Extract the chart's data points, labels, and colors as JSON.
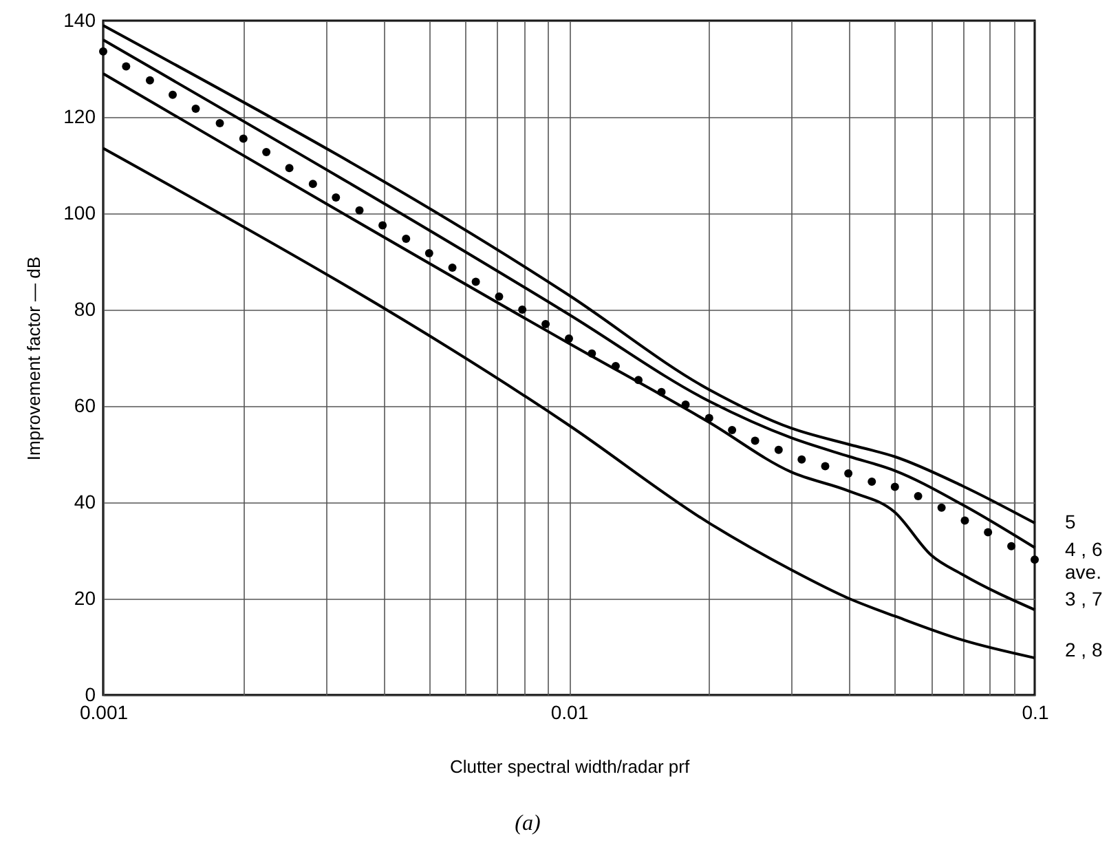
{
  "chart_data": {
    "type": "line",
    "xlabel": "Clutter spectral width/radar prf",
    "ylabel": "Improvement factor — dB",
    "annotations": [
      "(a)"
    ],
    "log": "x",
    "xlim": [
      0.001,
      0.1
    ],
    "ylim": [
      0,
      140
    ],
    "xticks": [
      0.001,
      {
        "value": 0.002,
        "label": null
      },
      {
        "value": 0.003,
        "label": null
      },
      {
        "value": 0.004,
        "label": null
      },
      {
        "value": 0.005,
        "label": null
      },
      {
        "value": 0.006,
        "label": null
      },
      {
        "value": 0.007,
        "label": null
      },
      {
        "value": 0.008,
        "label": null
      },
      {
        "value": 0.009,
        "label": null
      },
      0.01,
      {
        "value": 0.02,
        "label": null
      },
      {
        "value": 0.03,
        "label": null
      },
      {
        "value": 0.04,
        "label": null
      },
      {
        "value": 0.05,
        "label": null
      },
      {
        "value": 0.06,
        "label": null
      },
      {
        "value": 0.07,
        "label": null
      },
      {
        "value": 0.08,
        "label": null
      },
      {
        "value": 0.09,
        "label": null
      },
      0.1
    ],
    "yticks": [
      0,
      20,
      40,
      60,
      80,
      100,
      120,
      140
    ],
    "grid": true,
    "line_style": "solid",
    "series": [
      {
        "name": "5",
        "color": "#000000",
        "x": [
          0.001,
          0.01,
          0.02,
          0.03,
          0.04,
          0.05,
          0.07,
          0.1
        ],
        "values": [
          139,
          83,
          63.4,
          55.4,
          52,
          49.5,
          43.4,
          35.7
        ]
      },
      {
        "name": "4 , 6",
        "color": "#000000",
        "x": [
          0.001,
          0.01,
          0.02,
          0.03,
          0.04,
          0.05,
          0.07,
          0.1
        ],
        "values": [
          136,
          79,
          61,
          53.4,
          49.5,
          46.6,
          39.5,
          30.6
        ]
      },
      {
        "name": "3 , 7",
        "color": "#000000",
        "x": [
          0.001,
          0.01,
          0.02,
          0.03,
          0.04,
          0.05,
          0.06,
          0.07,
          0.1
        ],
        "values": [
          129,
          73,
          56.6,
          46.3,
          42.3,
          38,
          29,
          25,
          17.7
        ]
      },
      {
        "name": "2 , 8",
        "color": "#000000",
        "x": [
          0.001,
          0.01,
          0.02,
          0.03,
          0.04,
          0.05,
          0.07,
          0.1
        ],
        "values": [
          113.5,
          56,
          35.7,
          26,
          20,
          16.4,
          11.4,
          7.7
        ]
      },
      {
        "name": "ave.",
        "type": "scatter",
        "marker": "circle",
        "color": "#000000",
        "x": [
          0.001,
          0.00112,
          0.00126,
          0.00141,
          0.00158,
          0.00178,
          0.002,
          0.00224,
          0.00251,
          0.00282,
          0.00316,
          0.00355,
          0.00398,
          0.00447,
          0.00501,
          0.00562,
          0.00631,
          0.00708,
          0.00794,
          0.00891,
          0.01,
          0.0112,
          0.0126,
          0.0141,
          0.0158,
          0.0178,
          0.02,
          0.0224,
          0.0251,
          0.0282,
          0.0316,
          0.0355,
          0.0398,
          0.0447,
          0.0501,
          0.0562,
          0.0631,
          0.0708,
          0.0794,
          0.0891,
          0.1
        ],
        "values": [
          133.6,
          130.5,
          127.6,
          124.6,
          121.7,
          118.7,
          115.5,
          112.7,
          109.4,
          106.1,
          103.3,
          100.6,
          97.5,
          94.7,
          91.7,
          88.7,
          85.8,
          82.7,
          80,
          77,
          74,
          70.9,
          68.3,
          65.4,
          62.9,
          60.3,
          57.5,
          55,
          52.8,
          50.9,
          48.9,
          47.5,
          46,
          44.3,
          43.2,
          41.3,
          38.9,
          36.2,
          33.8,
          30.9,
          28.1
        ]
      }
    ]
  }
}
